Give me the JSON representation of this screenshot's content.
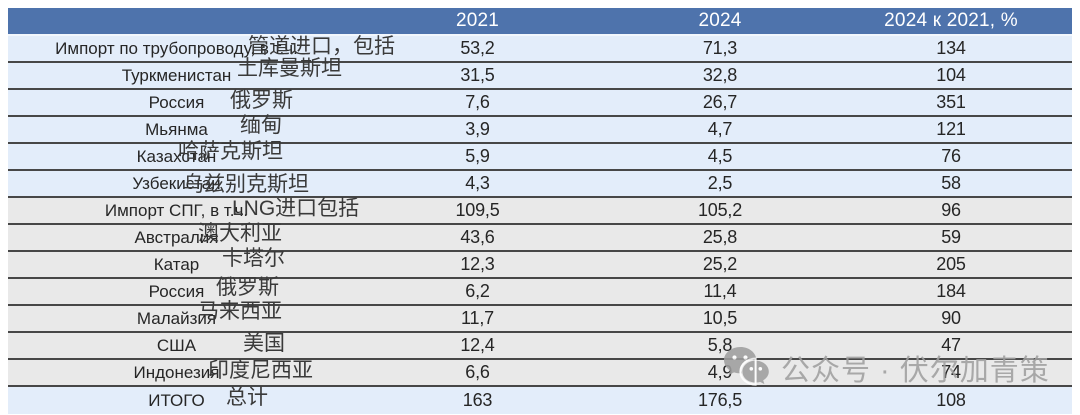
{
  "table": {
    "headers": [
      "",
      "2021",
      "2024",
      "2024 к 2021, %"
    ],
    "rows": [
      {
        "label": "Импорт по трубопроводу, в т.ч.",
        "overlay": "管道进口，包括",
        "v2021": "53,2",
        "v2024": "71,3",
        "ratio": "134",
        "section": "pipeline"
      },
      {
        "label": "Туркменистан",
        "overlay": "土库曼斯坦",
        "v2021": "31,5",
        "v2024": "32,8",
        "ratio": "104",
        "section": "pipeline"
      },
      {
        "label": "Россия",
        "overlay": "俄罗斯",
        "v2021": "7,6",
        "v2024": "26,7",
        "ratio": "351",
        "section": "pipeline"
      },
      {
        "label": "Мьянма",
        "overlay": "缅甸",
        "v2021": "3,9",
        "v2024": "4,7",
        "ratio": "121",
        "section": "pipeline"
      },
      {
        "label": "Казахстан",
        "overlay": "哈萨克斯坦",
        "v2021": "5,9",
        "v2024": "4,5",
        "ratio": "76",
        "section": "pipeline"
      },
      {
        "label": "Узбекистан",
        "overlay": "乌兹别克斯坦",
        "v2021": "4,3",
        "v2024": "2,5",
        "ratio": "58",
        "section": "pipeline"
      },
      {
        "label": "Импорт СПГ, в т.ч.",
        "overlay": "LNG进口包括",
        "v2021": "109,5",
        "v2024": "105,2",
        "ratio": "96",
        "section": "lng"
      },
      {
        "label": "Австралия",
        "overlay": "澳大利亚",
        "v2021": "43,6",
        "v2024": "25,8",
        "ratio": "59",
        "section": "lng"
      },
      {
        "label": "Катар",
        "overlay": "卡塔尔",
        "v2021": "12,3",
        "v2024": "25,2",
        "ratio": "205",
        "section": "lng"
      },
      {
        "label": "Россия",
        "overlay": "俄罗斯",
        "v2021": "6,2",
        "v2024": "11,4",
        "ratio": "184",
        "section": "lng"
      },
      {
        "label": "Малайзия",
        "overlay": "马来西亚",
        "v2021": "11,7",
        "v2024": "10,5",
        "ratio": "90",
        "section": "lng"
      },
      {
        "label": "США",
        "overlay": "美国",
        "v2021": "12,4",
        "v2024": "5,8",
        "ratio": "47",
        "section": "lng"
      },
      {
        "label": "Индонезия",
        "overlay": "印度尼西亚",
        "v2021": "6,6",
        "v2024": "4,9",
        "ratio": "74",
        "section": "lng"
      },
      {
        "label": "ИТОГО",
        "overlay": "总计",
        "v2021": "163",
        "v2024": "176,5",
        "ratio": "108",
        "section": "total"
      }
    ]
  },
  "watermark": {
    "icon": "wechat-icon",
    "text": "公众号 · 伏尔加青策"
  },
  "colors": {
    "header_bg": "#4e73ac",
    "header_text": "#ffffff",
    "row_blue": "#e3edfa",
    "row_gray": "#e9e9e9",
    "separator": "#474747",
    "body_text": "#262626",
    "overlay_text": "#3a3a3a",
    "watermark_gray": "#a0a0a0"
  }
}
